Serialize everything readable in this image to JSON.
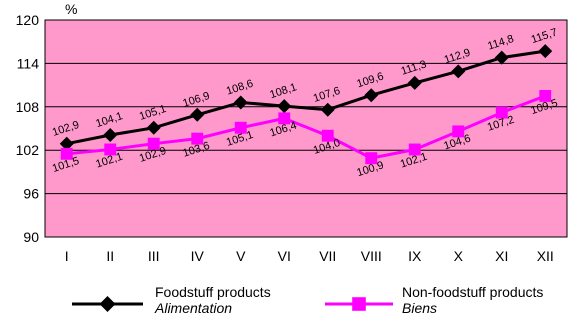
{
  "chart_data": {
    "type": "line",
    "unit_label": "%",
    "categories": [
      "I",
      "II",
      "III",
      "IV",
      "V",
      "VI",
      "VII",
      "VIII",
      "IX",
      "X",
      "XI",
      "XII"
    ],
    "ylim": [
      90,
      120
    ],
    "yticks": [
      90,
      96,
      102,
      108,
      114,
      120
    ],
    "background_color": "#FF99CC",
    "grid": true,
    "legend_position": "bottom",
    "series": [
      {
        "name": "Foodstuff products",
        "name_alt": "Alimentation",
        "color": "#000000",
        "marker": "diamond",
        "values": [
          102.9,
          104.1,
          105.1,
          106.9,
          108.6,
          108.1,
          107.6,
          109.6,
          111.3,
          112.9,
          114.8,
          115.7
        ],
        "labels": [
          "102,9",
          "104,1",
          "105,1",
          "106,9",
          "108,6",
          "108,1",
          "107,6",
          "109,6",
          "111,3",
          "112,9",
          "114,8",
          "115,7"
        ]
      },
      {
        "name": "Non-foodstuff products",
        "name_alt": "Biens",
        "color": "#FF00FF",
        "marker": "square",
        "values": [
          101.5,
          102.1,
          102.9,
          103.6,
          105.1,
          106.4,
          104.0,
          100.9,
          102.1,
          104.6,
          107.2,
          109.5
        ],
        "labels": [
          "101,5",
          "102,1",
          "102,9",
          "103,6",
          "105,1",
          "106,4",
          "104,0",
          "100,9",
          "102,1",
          "104,6",
          "107,2",
          "109,5"
        ]
      }
    ]
  }
}
